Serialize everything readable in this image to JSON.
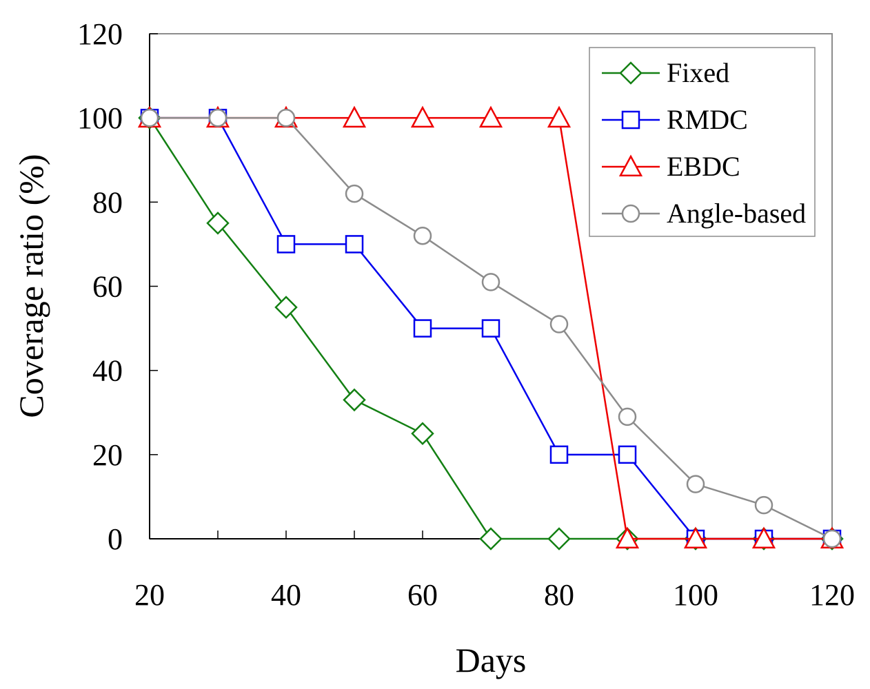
{
  "chart_data": {
    "type": "line",
    "title": "",
    "xlabel": "Days",
    "ylabel": "Coverage ratio (%)",
    "x": [
      20,
      30,
      40,
      50,
      60,
      70,
      80,
      90,
      100,
      110,
      120
    ],
    "xlim": [
      20,
      120
    ],
    "ylim": [
      0,
      120
    ],
    "xticks": [
      20,
      40,
      60,
      80,
      100,
      120
    ],
    "yticks": [
      0,
      20,
      40,
      60,
      80,
      100,
      120
    ],
    "grid": false,
    "legend_position": "top-right",
    "series": [
      {
        "name": "Fixed",
        "marker": "diamond",
        "color": "#138013",
        "values": [
          100,
          75,
          55,
          33,
          25,
          0,
          0,
          0,
          0,
          0,
          0
        ]
      },
      {
        "name": "RMDC",
        "marker": "square",
        "color": "#0000ee",
        "values": [
          100,
          100,
          70,
          70,
          50,
          50,
          20,
          20,
          0,
          0,
          0
        ]
      },
      {
        "name": "EBDC",
        "marker": "triangle",
        "color": "#ee0000",
        "values": [
          100,
          100,
          100,
          100,
          100,
          100,
          100,
          0,
          0,
          0,
          0
        ]
      },
      {
        "name": "Angle-based",
        "marker": "circle",
        "color": "#8c8c8c",
        "values": [
          100,
          100,
          100,
          82,
          72,
          61,
          51,
          29,
          13,
          8,
          0
        ]
      }
    ]
  }
}
